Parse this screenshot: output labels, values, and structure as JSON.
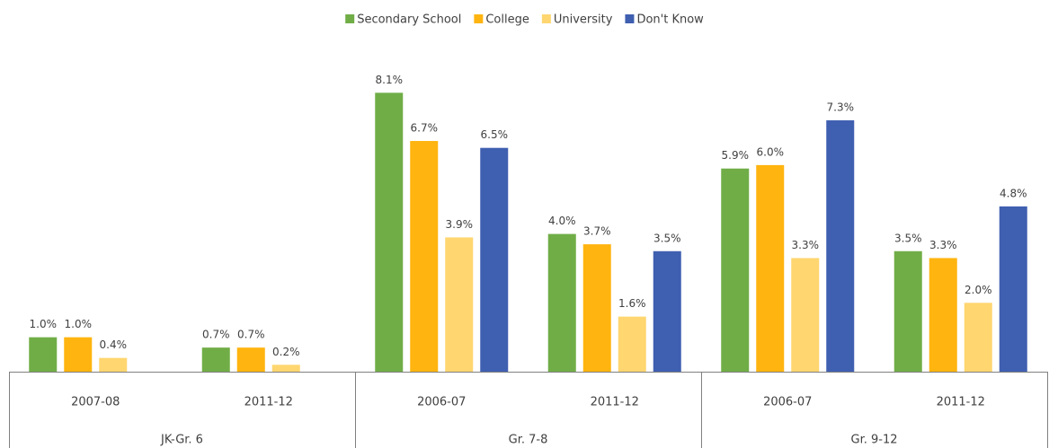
{
  "chart_data": {
    "type": "bar",
    "categories": [
      "2007-08",
      "2011-12",
      "2006-07",
      "2011-12",
      "2006-07",
      "2011-12"
    ],
    "category_groups": [
      "JK-Gr. 6",
      "Gr. 7-8",
      "Gr. 9-12"
    ],
    "series": [
      {
        "name": "Secondary School",
        "color": "#70ad47",
        "values": [
          1.0,
          0.7,
          8.1,
          4.0,
          5.9,
          3.5
        ],
        "value_labels": [
          "1.0%",
          "0.7%",
          "8.1%",
          "4.0%",
          "5.9%",
          "3.5%"
        ]
      },
      {
        "name": "College",
        "color": "#ffb40f",
        "values": [
          1.0,
          0.7,
          6.7,
          3.7,
          6.0,
          3.3
        ],
        "value_labels": [
          "1.0%",
          "0.7%",
          "6.7%",
          "3.7%",
          "6.0%",
          "3.3%"
        ]
      },
      {
        "name": "University",
        "color": "#ffd670",
        "values": [
          0.4,
          0.2,
          3.9,
          1.6,
          3.3,
          2.0
        ],
        "value_labels": [
          "0.4%",
          "0.2%",
          "3.9%",
          "1.6%",
          "3.3%",
          "2.0%"
        ]
      },
      {
        "name": "Don't Know",
        "color": "#3f5fb0",
        "values": [
          null,
          null,
          6.5,
          3.5,
          7.3,
          4.8
        ],
        "value_labels": [
          null,
          null,
          "6.5%",
          "3.5%",
          "7.3%",
          "4.8%"
        ]
      }
    ],
    "ylim": [
      0,
      8.5
    ],
    "legend": "top"
  }
}
